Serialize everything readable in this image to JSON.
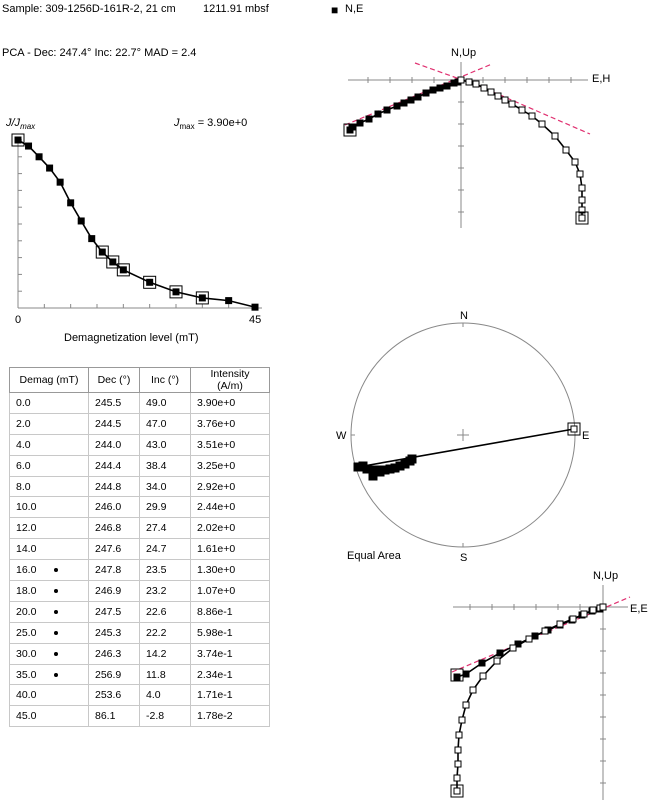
{
  "header": {
    "sample": "Sample: 309-1256D-161R-2, 21 cm",
    "depth": "1211.91 mbsf",
    "pca": "PCA - Dec: 247.4°   Inc: 22.7°   MAD = 2.4",
    "legend_symbol": "■",
    "legend_label": "N,E"
  },
  "colors": {
    "fit_line": "#e03070",
    "marker": "#000000",
    "axis": "#888888"
  },
  "intensity_plot": {
    "ylabel_j": "J",
    "ylabel_rest": "/J",
    "ylabel_sub": "max",
    "jmax_prefix": "J",
    "jmax_sub": "max",
    "jmax_value": "= 3.90e+0",
    "x_tick_min": "0",
    "x_tick_max": "45",
    "xlabel": "Demagnetization level (mT)"
  },
  "zij_upper": {
    "ns_label": "N,Up",
    "ew_label": "E,H"
  },
  "zij_lower": {
    "ns_label": "N,Up",
    "ew_label": "E,E"
  },
  "stereonet": {
    "n": "N",
    "s": "S",
    "e": "E",
    "w": "W",
    "caption": "Equal Area"
  },
  "table": {
    "headers": [
      "Demag (mT)",
      "Dec (°)",
      "Inc (°)",
      "Intensity (A/m)"
    ],
    "rows": [
      {
        "demag": "0.0",
        "dec": "245.5",
        "inc": "49.0",
        "intensity": "3.90e+0",
        "used": false
      },
      {
        "demag": "2.0",
        "dec": "244.5",
        "inc": "47.0",
        "intensity": "3.76e+0",
        "used": false
      },
      {
        "demag": "4.0",
        "dec": "244.0",
        "inc": "43.0",
        "intensity": "3.51e+0",
        "used": false
      },
      {
        "demag": "6.0",
        "dec": "244.4",
        "inc": "38.4",
        "intensity": "3.25e+0",
        "used": false
      },
      {
        "demag": "8.0",
        "dec": "244.8",
        "inc": "34.0",
        "intensity": "2.92e+0",
        "used": false
      },
      {
        "demag": "10.0",
        "dec": "246.0",
        "inc": "29.9",
        "intensity": "2.44e+0",
        "used": false
      },
      {
        "demag": "12.0",
        "dec": "246.8",
        "inc": "27.4",
        "intensity": "2.02e+0",
        "used": false
      },
      {
        "demag": "14.0",
        "dec": "247.6",
        "inc": "24.7",
        "intensity": "1.61e+0",
        "used": false
      },
      {
        "demag": "16.0",
        "dec": "247.8",
        "inc": "23.5",
        "intensity": "1.30e+0",
        "used": true
      },
      {
        "demag": "18.0",
        "dec": "246.9",
        "inc": "23.2",
        "intensity": "1.07e+0",
        "used": true
      },
      {
        "demag": "20.0",
        "dec": "247.5",
        "inc": "22.6",
        "intensity": "8.86e-1",
        "used": true
      },
      {
        "demag": "25.0",
        "dec": "245.3",
        "inc": "22.2",
        "intensity": "5.98e-1",
        "used": true
      },
      {
        "demag": "30.0",
        "dec": "246.3",
        "inc": "14.2",
        "intensity": "3.74e-1",
        "used": true
      },
      {
        "demag": "35.0",
        "dec": "256.9",
        "inc": "11.8",
        "intensity": "2.34e-1",
        "used": true
      },
      {
        "demag": "40.0",
        "dec": "253.6",
        "inc": "4.0",
        "intensity": "1.71e-1",
        "used": false
      },
      {
        "demag": "45.0",
        "dec": "86.1",
        "inc": "-2.8",
        "intensity": "1.78e-2",
        "used": false
      }
    ]
  },
  "chart_data": [
    {
      "type": "line",
      "name": "intensity decay",
      "xlabel": "Demagnetization level (mT)",
      "ylabel": "J/Jmax",
      "x": [
        0,
        2,
        4,
        6,
        8,
        10,
        12,
        14,
        16,
        18,
        20,
        25,
        30,
        35,
        40,
        45
      ],
      "y": [
        1.0,
        0.964,
        0.9,
        0.833,
        0.749,
        0.626,
        0.518,
        0.413,
        0.333,
        0.274,
        0.227,
        0.153,
        0.096,
        0.06,
        0.044,
        0.005
      ],
      "xlim": [
        0,
        45
      ],
      "ylim": [
        0,
        1
      ]
    },
    {
      "type": "scatter",
      "name": "orthogonal projection (upper)",
      "labels": [
        "N,Up",
        "E,H"
      ]
    },
    {
      "type": "scatter",
      "name": "equal area stereonet",
      "caption": "Equal Area"
    },
    {
      "type": "scatter",
      "name": "orthogonal projection (lower)",
      "labels": [
        "N,Up",
        "E,E"
      ]
    }
  ]
}
